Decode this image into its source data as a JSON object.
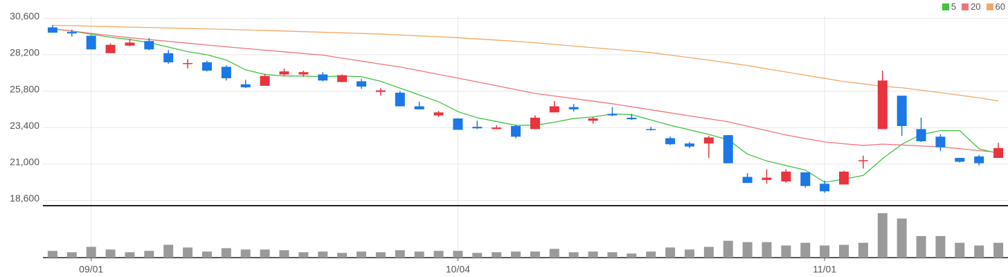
{
  "chart_data": {
    "type": "candlestick",
    "categories": [
      null,
      null,
      "09/01",
      null,
      null,
      null,
      null,
      null,
      null,
      null,
      null,
      null,
      null,
      null,
      null,
      null,
      null,
      null,
      null,
      null,
      null,
      "10/04",
      null,
      null,
      null,
      null,
      null,
      null,
      null,
      null,
      null,
      null,
      null,
      null,
      null,
      null,
      null,
      null,
      null,
      null,
      "11/01",
      null,
      null,
      null,
      null,
      null,
      null,
      null,
      null,
      null
    ],
    "open": [
      30000,
      29700,
      29450,
      28300,
      28800,
      29100,
      28300,
      27600,
      27700,
      27400,
      26250,
      26150,
      26900,
      26900,
      26900,
      26400,
      26450,
      25750,
      25700,
      24800,
      24200,
      24000,
      23450,
      23300,
      23500,
      23300,
      24400,
      24750,
      23850,
      24300,
      24050,
      23300,
      22700,
      22350,
      22350,
      22900,
      20150,
      19950,
      19850,
      20450,
      19700,
      19650,
      21200,
      23300,
      25500,
      23300,
      22800,
      21400,
      21500,
      21400
    ],
    "high": [
      30150,
      29850,
      29500,
      28950,
      29250,
      29300,
      28500,
      27900,
      27800,
      27500,
      26550,
      26950,
      27300,
      27150,
      27050,
      26900,
      26600,
      26000,
      25800,
      25100,
      24500,
      24000,
      23850,
      23550,
      23600,
      24200,
      25150,
      24950,
      24100,
      24750,
      24300,
      23450,
      22800,
      22450,
      22850,
      22900,
      20400,
      20650,
      20650,
      20450,
      19900,
      20550,
      21550,
      27150,
      25500,
      24050,
      22950,
      21400,
      21600,
      22400
    ],
    "low": [
      29650,
      29400,
      28550,
      28300,
      28750,
      28500,
      27600,
      27300,
      27100,
      26500,
      26000,
      26150,
      26800,
      26750,
      26450,
      26400,
      25950,
      25500,
      24800,
      24600,
      24100,
      23250,
      23300,
      23300,
      22700,
      23300,
      24400,
      24450,
      23650,
      24150,
      23900,
      23200,
      22250,
      22050,
      21400,
      21050,
      19750,
      19700,
      19750,
      19450,
      19100,
      19650,
      20700,
      23300,
      22850,
      22450,
      21850,
      21100,
      20900,
      21400
    ],
    "close": [
      29650,
      29600,
      28550,
      28850,
      29000,
      28550,
      27700,
      27650,
      27150,
      26650,
      26050,
      26800,
      27100,
      27050,
      26500,
      26850,
      26100,
      25850,
      24800,
      24600,
      24400,
      23250,
      23350,
      23400,
      22800,
      24050,
      24800,
      24600,
      24000,
      24200,
      23950,
      23250,
      22300,
      22150,
      22750,
      21050,
      19750,
      20100,
      20500,
      19550,
      19200,
      20500,
      21250,
      26500,
      23500,
      22500,
      22100,
      21150,
      21050,
      22050
    ],
    "up_color": "#e8343d",
    "down_color": "#1b78e6",
    "series": [
      {
        "name": "5",
        "color": "#3ec43e",
        "values": [
          29900,
          29750,
          29550,
          29350,
          29200,
          29000,
          28700,
          28400,
          28200,
          27850,
          27200,
          26900,
          26800,
          26800,
          26750,
          26800,
          26750,
          26450,
          26000,
          25550,
          25100,
          24450,
          24050,
          23800,
          23550,
          23550,
          23750,
          24000,
          24100,
          24300,
          24250,
          23900,
          23550,
          23250,
          22950,
          22600,
          21650,
          21200,
          20900,
          20600,
          19800,
          20000,
          20250,
          21350,
          22300,
          22950,
          23200,
          23200,
          22000,
          21700
        ]
      },
      {
        "name": "20",
        "color": "#f2747a",
        "values": [
          29910,
          29760,
          29610,
          29460,
          29320,
          29200,
          29080,
          28960,
          28840,
          28720,
          28610,
          28500,
          28390,
          28280,
          28170,
          27970,
          27780,
          27580,
          27390,
          27150,
          26900,
          26660,
          26410,
          26160,
          25900,
          25650,
          25480,
          25310,
          25140,
          24970,
          24770,
          24570,
          24370,
          24170,
          23980,
          23780,
          23490,
          23200,
          22910,
          22680,
          22450,
          22330,
          22220,
          22310,
          22250,
          22190,
          22130,
          22010,
          21880,
          21760
        ]
      },
      {
        "name": "60",
        "color": "#f5a862",
        "values": [
          30140,
          30110,
          30080,
          30050,
          30020,
          29990,
          29960,
          29930,
          29900,
          29870,
          29830,
          29800,
          29760,
          29720,
          29680,
          29640,
          29600,
          29560,
          29500,
          29440,
          29380,
          29320,
          29240,
          29160,
          29080,
          28990,
          28880,
          28770,
          28660,
          28560,
          28450,
          28340,
          28170,
          28010,
          27840,
          27660,
          27490,
          27270,
          27060,
          26850,
          26640,
          26430,
          26280,
          26120,
          26020,
          25860,
          25700,
          25530,
          25360,
          25150
        ]
      }
    ],
    "volume": {
      "color": "#9a9a9a",
      "ylim": [
        0,
        74
      ],
      "values": [
        10,
        8,
        16,
        12,
        8,
        10,
        19,
        15,
        9,
        14,
        12,
        12,
        11,
        8,
        9,
        7,
        9,
        8,
        11,
        9,
        10,
        10,
        7,
        8,
        9,
        9,
        13,
        8,
        9,
        8,
        6,
        9,
        15,
        12,
        16,
        25,
        23,
        23,
        18,
        22,
        18,
        19,
        22,
        66,
        58,
        32,
        32,
        22,
        18,
        22
      ]
    },
    "ylim": [
      18300,
      30800
    ],
    "yticks": [
      {
        "value": 18600,
        "label": "18,600"
      },
      {
        "value": 21000,
        "label": "21,000"
      },
      {
        "value": 23400,
        "label": "23,400"
      },
      {
        "value": 25800,
        "label": "25,800"
      },
      {
        "value": 28200,
        "label": "28,200"
      },
      {
        "value": 30600,
        "label": "30,600"
      }
    ],
    "grid": true
  }
}
